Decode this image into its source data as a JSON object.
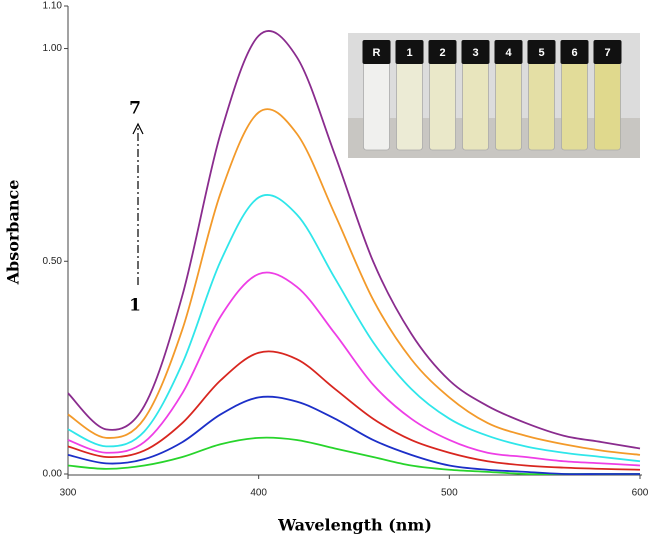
{
  "chart_data": {
    "type": "line",
    "x_label": "Wavelength (nm)",
    "y_label": "Absorbance",
    "x": [
      300,
      320,
      340,
      360,
      380,
      400,
      420,
      440,
      460,
      480,
      500,
      520,
      540,
      560,
      580,
      600
    ],
    "series": [
      {
        "color": "#27d42b",
        "values": [
          0.02,
          0.012,
          0.02,
          0.04,
          0.07,
          0.085,
          0.08,
          0.06,
          0.04,
          0.02,
          0.01,
          0.005,
          0,
          0,
          0,
          0
        ]
      },
      {
        "color": "#1c2fc8",
        "values": [
          0.045,
          0.025,
          0.035,
          0.075,
          0.14,
          0.18,
          0.17,
          0.13,
          0.08,
          0.045,
          0.02,
          0.01,
          0.005,
          0,
          0,
          0
        ]
      },
      {
        "color": "#d8261f",
        "values": [
          0.065,
          0.04,
          0.055,
          0.12,
          0.22,
          0.285,
          0.27,
          0.2,
          0.13,
          0.08,
          0.05,
          0.03,
          0.02,
          0.015,
          0.012,
          0.01
        ]
      },
      {
        "color": "#ee3ee6",
        "values": [
          0.08,
          0.05,
          0.075,
          0.19,
          0.37,
          0.47,
          0.44,
          0.33,
          0.21,
          0.13,
          0.08,
          0.05,
          0.04,
          0.03,
          0.025,
          0.02
        ]
      },
      {
        "color": "#2fe6ea",
        "values": [
          0.105,
          0.065,
          0.1,
          0.26,
          0.5,
          0.65,
          0.61,
          0.46,
          0.31,
          0.2,
          0.13,
          0.09,
          0.065,
          0.05,
          0.04,
          0.03
        ]
      },
      {
        "color": "#f39a2a",
        "values": [
          0.14,
          0.085,
          0.13,
          0.34,
          0.66,
          0.85,
          0.8,
          0.61,
          0.41,
          0.27,
          0.18,
          0.12,
          0.09,
          0.07,
          0.055,
          0.045
        ]
      },
      {
        "color": "#8a2c8e",
        "values": [
          0.19,
          0.105,
          0.16,
          0.42,
          0.8,
          1.03,
          0.98,
          0.75,
          0.5,
          0.33,
          0.22,
          0.16,
          0.12,
          0.09,
          0.075,
          0.06
        ]
      }
    ],
    "xlim": [
      300,
      600
    ],
    "xticks": [
      300,
      400,
      500,
      600
    ],
    "ylim": [
      0,
      1.1
    ],
    "yticks": [
      {
        "value": 0,
        "label": "0.00"
      },
      {
        "value": 0.5,
        "label": "0.50"
      },
      {
        "value": 1,
        "label": "1.00"
      },
      {
        "value": 1.1,
        "label": "1.10"
      }
    ],
    "arrow_labels": [
      "7",
      "1"
    ],
    "vial_labels": [
      "R",
      "1",
      "2",
      "3",
      "4",
      "5",
      "6",
      "7"
    ]
  }
}
